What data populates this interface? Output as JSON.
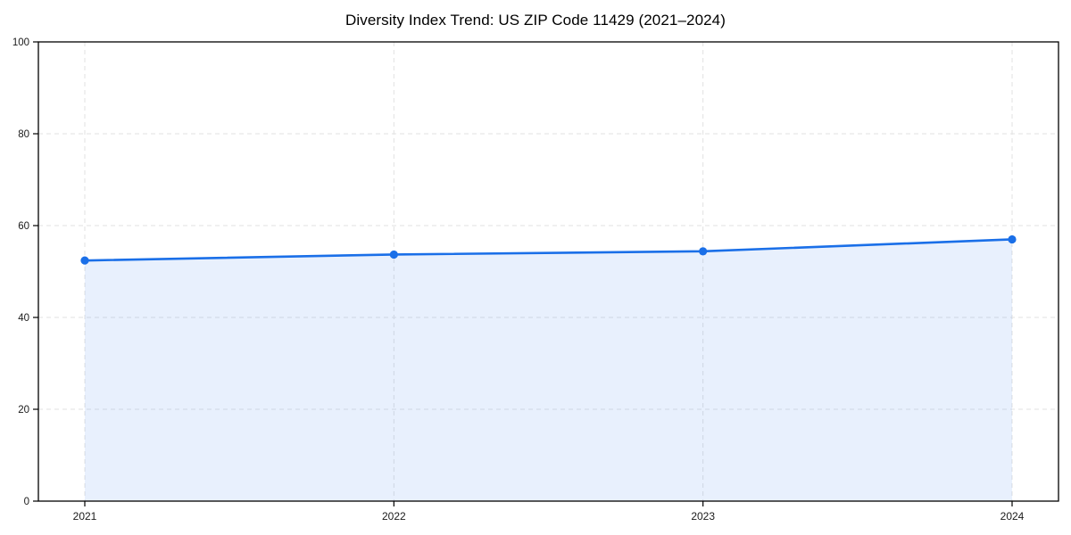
{
  "figure": {
    "background": "#ffffff"
  },
  "chart_data": {
    "type": "area",
    "title": "Diversity Index Trend: US ZIP Code 11429 (2021–2024)",
    "series_name": "Diversity Index",
    "categories": [
      "2021",
      "2022",
      "2023",
      "2024"
    ],
    "values": [
      52.4,
      53.7,
      54.4,
      57.0
    ],
    "xlabel": "",
    "ylabel": "",
    "ylim": [
      0,
      100
    ],
    "yticks": [
      0,
      20,
      40,
      60,
      80,
      100
    ],
    "grid": "dashed-both-axes",
    "legend": "none",
    "line_color": "#1a6fe8",
    "marker": "circle",
    "marker_color": "#1a6fe8",
    "fill_color": "#1a6fe8",
    "fill_opacity": 0.1,
    "grid_color": "#e2e2e2",
    "spine_color": "#000000",
    "tick_label_color": "#1a1a1a"
  }
}
